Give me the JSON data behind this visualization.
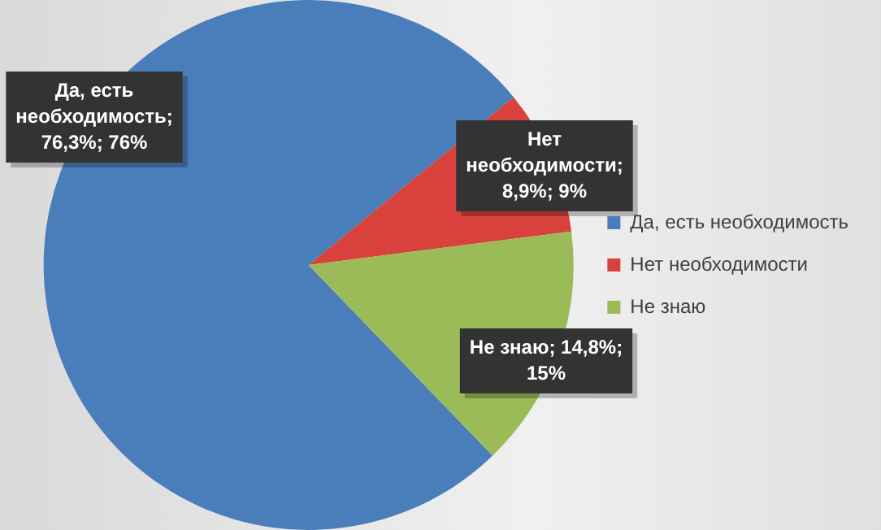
{
  "chart_data": {
    "type": "pie",
    "categories": [
      "Да, есть необходимость",
      "Нет необходимости",
      "Не знаю"
    ],
    "values": [
      76.3,
      8.9,
      14.8
    ],
    "colors": [
      "#4a7ebb",
      "#d9413c",
      "#9bbb59"
    ],
    "value_labels": [
      "Да, есть необходимость; 76,3%; 76%",
      "Нет необходимости; 8,9%; 9%",
      "Не знаю; 14,8%; 15%"
    ],
    "legend": "right"
  }
}
